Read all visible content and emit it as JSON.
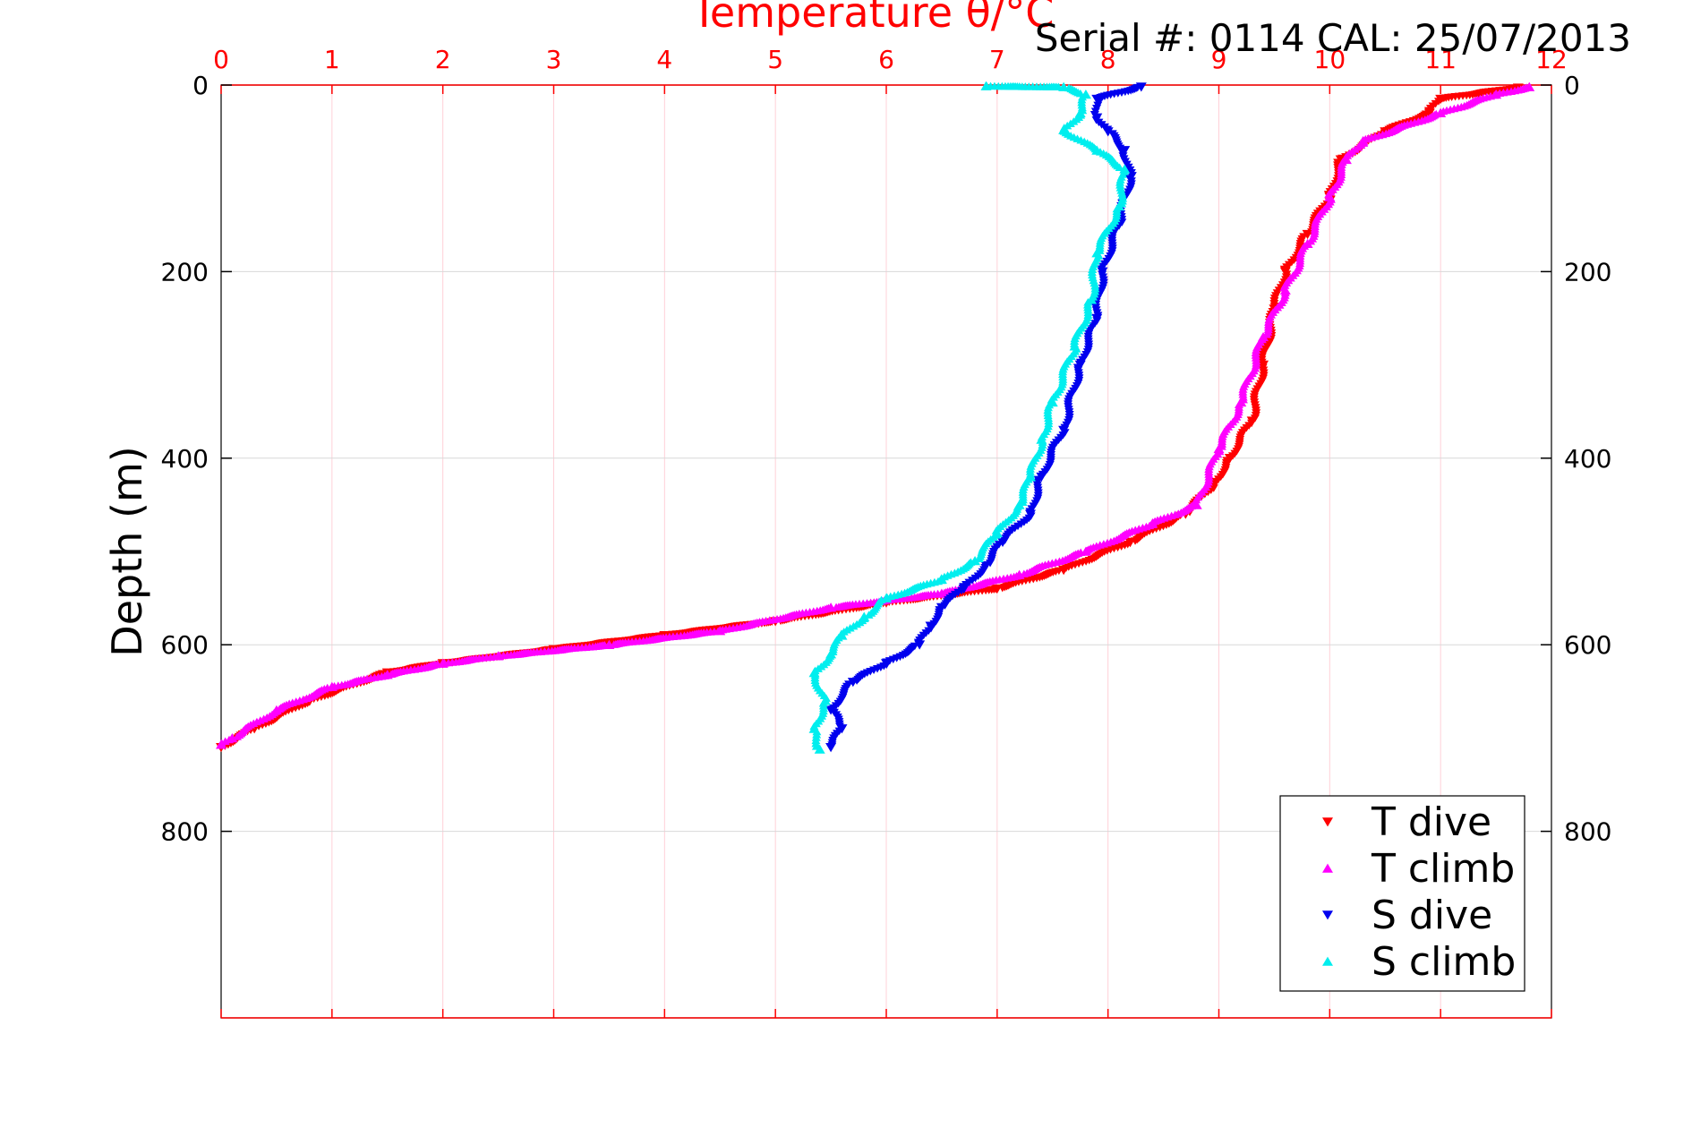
{
  "chart_data": {
    "type": "scatter",
    "title": "Temperature θ/°C",
    "subtitle": "Serial #: 0114  CAL: 25/07/2013",
    "xlabel": "Temperature θ/°C",
    "ylabel": "Depth (m)",
    "xlim": [
      0,
      12
    ],
    "ylim": [
      0,
      1000
    ],
    "y_reversed": true,
    "x_axis_position": "top",
    "x_ticks": [
      "0",
      "1",
      "2",
      "3",
      "4",
      "5",
      "6",
      "7",
      "8",
      "9",
      "10",
      "11",
      "12"
    ],
    "y_ticks": [
      "0",
      "200",
      "400",
      "600",
      "800"
    ],
    "grid": true,
    "legend_position": "bottom-right",
    "colors": {
      "axis": "#ff0000",
      "grid_x": "#ffd0d8",
      "grid_y": "#d8d8d8"
    },
    "series": [
      {
        "name": "T dive",
        "marker": "triangle-down",
        "color": "#ff0000",
        "points": [
          [
            11.7,
            3
          ],
          [
            11.0,
            15
          ],
          [
            10.9,
            30
          ],
          [
            10.5,
            50
          ],
          [
            10.1,
            80
          ],
          [
            10.0,
            120
          ],
          [
            9.8,
            160
          ],
          [
            9.6,
            200
          ],
          [
            9.5,
            240
          ],
          [
            9.4,
            300
          ],
          [
            9.3,
            360
          ],
          [
            9.1,
            400
          ],
          [
            8.95,
            430
          ],
          [
            8.7,
            460
          ],
          [
            8.2,
            490
          ],
          [
            7.6,
            520
          ],
          [
            7.0,
            540
          ],
          [
            6.0,
            555
          ],
          [
            5.0,
            575
          ],
          [
            4.0,
            590
          ],
          [
            3.0,
            605
          ],
          [
            2.0,
            620
          ],
          [
            1.5,
            630
          ],
          [
            0.8,
            660
          ],
          [
            0.3,
            690
          ],
          [
            0.0,
            710
          ]
        ]
      },
      {
        "name": "T climb",
        "marker": "triangle-up",
        "color": "#ff00ff",
        "points": [
          [
            11.8,
            2
          ],
          [
            11.5,
            10
          ],
          [
            11.0,
            30
          ],
          [
            10.3,
            60
          ],
          [
            10.15,
            80
          ],
          [
            10.0,
            120
          ],
          [
            9.8,
            170
          ],
          [
            9.6,
            220
          ],
          [
            9.4,
            270
          ],
          [
            9.2,
            340
          ],
          [
            9.0,
            390
          ],
          [
            8.8,
            450
          ],
          [
            8.4,
            470
          ],
          [
            7.8,
            500
          ],
          [
            7.2,
            525
          ],
          [
            6.5,
            545
          ],
          [
            5.5,
            560
          ],
          [
            4.5,
            585
          ],
          [
            3.5,
            600
          ],
          [
            2.5,
            612
          ],
          [
            2.0,
            620
          ],
          [
            1.5,
            632
          ],
          [
            1.0,
            645
          ],
          [
            0.5,
            670
          ],
          [
            0.1,
            700
          ],
          [
            0.0,
            707
          ]
        ]
      },
      {
        "name": "S dive",
        "marker": "triangle-down",
        "color": "#0000ee",
        "points": [
          [
            8.3,
            2
          ],
          [
            7.9,
            15
          ],
          [
            7.9,
            35
          ],
          [
            8.0,
            50
          ],
          [
            8.15,
            70
          ],
          [
            8.2,
            100
          ],
          [
            8.1,
            150
          ],
          [
            7.95,
            200
          ],
          [
            7.9,
            250
          ],
          [
            7.75,
            300
          ],
          [
            7.6,
            370
          ],
          [
            7.4,
            420
          ],
          [
            7.3,
            460
          ],
          [
            7.05,
            490
          ],
          [
            6.9,
            515
          ],
          [
            6.7,
            540
          ],
          [
            6.5,
            560
          ],
          [
            6.4,
            580
          ],
          [
            6.3,
            600
          ],
          [
            6.0,
            620
          ],
          [
            5.7,
            640
          ],
          [
            5.5,
            670
          ],
          [
            5.6,
            690
          ],
          [
            5.5,
            710
          ]
        ]
      },
      {
        "name": "S climb",
        "marker": "triangle-up",
        "color": "#00eeee",
        "points": [
          [
            6.9,
            1
          ],
          [
            7.6,
            2
          ],
          [
            7.8,
            10
          ],
          [
            7.75,
            30
          ],
          [
            7.6,
            48
          ],
          [
            7.9,
            70
          ],
          [
            8.15,
            90
          ],
          [
            8.1,
            130
          ],
          [
            7.9,
            180
          ],
          [
            7.85,
            230
          ],
          [
            7.7,
            280
          ],
          [
            7.5,
            340
          ],
          [
            7.4,
            380
          ],
          [
            7.3,
            420
          ],
          [
            7.2,
            450
          ],
          [
            7.0,
            480
          ],
          [
            6.8,
            510
          ],
          [
            6.5,
            530
          ],
          [
            6.0,
            550
          ],
          [
            5.8,
            570
          ],
          [
            5.6,
            590
          ],
          [
            5.5,
            610
          ],
          [
            5.35,
            630
          ],
          [
            5.45,
            660
          ],
          [
            5.35,
            690
          ],
          [
            5.4,
            712
          ]
        ]
      }
    ]
  }
}
